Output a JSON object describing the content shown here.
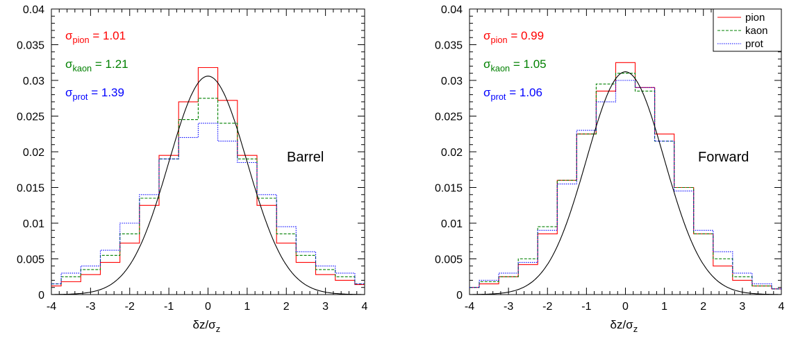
{
  "chart_data": [
    {
      "type": "line",
      "panel_label": "Barrel",
      "xlabel": "δz/σ",
      "xlabel_sub": "z",
      "xlim": [
        -4,
        4
      ],
      "ylim": [
        0,
        0.04
      ],
      "x_ticks": [
        "-4",
        "-3",
        "-2",
        "-1",
        "0",
        "1",
        "2",
        "3",
        "4"
      ],
      "y_ticks": [
        "0",
        "0.005",
        "0.01",
        "0.015",
        "0.02",
        "0.025",
        "0.03",
        "0.035",
        "0.04"
      ],
      "annotations": [
        {
          "sym": "σ",
          "sub": "pion",
          "text": " = 1.01",
          "color": "#ff0000"
        },
        {
          "sym": "σ",
          "sub": "kaon",
          "text": " = 1.21",
          "color": "#008000"
        },
        {
          "sym": "σ",
          "sub": "prot",
          "text": " = 1.39",
          "color": "#0000ff"
        }
      ],
      "series": [
        {
          "color": "#ff0000",
          "dash": "",
          "x": [
            -4,
            -3.5,
            -3,
            -2.5,
            -2,
            -1.5,
            -1,
            -0.5,
            0,
            0.5,
            1,
            1.5,
            2,
            2.5,
            3,
            3.5,
            4
          ],
          "y": [
            0.0012,
            0.0018,
            0.0028,
            0.0045,
            0.0072,
            0.0125,
            0.0195,
            0.027,
            0.0318,
            0.0272,
            0.0195,
            0.0125,
            0.0072,
            0.0045,
            0.0028,
            0.002,
            0.0014
          ]
        },
        {
          "color": "#008000",
          "dash": "4,2",
          "x": [
            -4,
            -3.5,
            -3,
            -2.5,
            -2,
            -1.5,
            -1,
            -0.5,
            0,
            0.5,
            1,
            1.5,
            2,
            2.5,
            3,
            3.5,
            4
          ],
          "y": [
            0.0015,
            0.0025,
            0.0035,
            0.0055,
            0.0085,
            0.0135,
            0.019,
            0.0245,
            0.0275,
            0.024,
            0.019,
            0.0135,
            0.0085,
            0.0055,
            0.0035,
            0.0025,
            0.0015
          ]
        },
        {
          "color": "#0000ff",
          "dash": "1.5,1.5",
          "x": [
            -4,
            -3.5,
            -3,
            -2.5,
            -2,
            -1.5,
            -1,
            -0.5,
            0,
            0.5,
            1,
            1.5,
            2,
            2.5,
            3,
            3.5,
            4
          ],
          "y": [
            0.0015,
            0.003,
            0.004,
            0.0062,
            0.01,
            0.014,
            0.019,
            0.022,
            0.024,
            0.0215,
            0.0185,
            0.014,
            0.0095,
            0.006,
            0.004,
            0.003,
            0.0015
          ]
        }
      ],
      "fit": {
        "amplitude": 0.0306,
        "mean": 0,
        "sigma": 1.0
      }
    },
    {
      "type": "line",
      "panel_label": "Forward",
      "xlabel": "δz/σ",
      "xlabel_sub": "z",
      "xlim": [
        -4,
        4
      ],
      "ylim": [
        0,
        0.04
      ],
      "x_ticks": [
        "-4",
        "-3",
        "-2",
        "-1",
        "0",
        "1",
        "2",
        "3",
        "4"
      ],
      "y_ticks": [
        "0",
        "0.005",
        "0.01",
        "0.015",
        "0.02",
        "0.025",
        "0.03",
        "0.035",
        "0.04"
      ],
      "annotations": [
        {
          "sym": "σ",
          "sub": "pion",
          "text": " = 0.99",
          "color": "#ff0000"
        },
        {
          "sym": "σ",
          "sub": "kaon",
          "text": " = 1.05",
          "color": "#008000"
        },
        {
          "sym": "σ",
          "sub": "prot",
          "text": " = 1.06",
          "color": "#0000ff"
        }
      ],
      "legend": {
        "position": "top-right",
        "entries": [
          {
            "label": "pion",
            "color": "#ff0000",
            "dash": ""
          },
          {
            "label": "kaon",
            "color": "#008000",
            "dash": "4,2"
          },
          {
            "label": "prot",
            "color": "#0000ff",
            "dash": "1.5,1.5"
          }
        ]
      },
      "series": [
        {
          "color": "#ff0000",
          "dash": "",
          "x": [
            -4,
            -3.5,
            -3,
            -2.5,
            -2,
            -1.5,
            -1,
            -0.5,
            0,
            0.5,
            1,
            1.5,
            2,
            2.5,
            3,
            3.5,
            4
          ],
          "y": [
            0.001,
            0.0015,
            0.0025,
            0.0042,
            0.0085,
            0.016,
            0.0225,
            0.0285,
            0.0325,
            0.029,
            0.0225,
            0.015,
            0.0085,
            0.004,
            0.002,
            0.0012,
            0.0008
          ]
        },
        {
          "color": "#008000",
          "dash": "4,2",
          "x": [
            -4,
            -3.5,
            -3,
            -2.5,
            -2,
            -1.5,
            -1,
            -0.5,
            0,
            0.5,
            1,
            1.5,
            2,
            2.5,
            3,
            3.5,
            4
          ],
          "y": [
            0.001,
            0.0018,
            0.0025,
            0.005,
            0.0095,
            0.016,
            0.0225,
            0.0295,
            0.031,
            0.0285,
            0.0215,
            0.015,
            0.0085,
            0.005,
            0.0025,
            0.0012,
            0.0008
          ]
        },
        {
          "color": "#0000ff",
          "dash": "1.5,1.5",
          "x": [
            -4,
            -3.5,
            -3,
            -2.5,
            -2,
            -1.5,
            -1,
            -0.5,
            0,
            0.5,
            1,
            1.5,
            2,
            2.5,
            3,
            3.5,
            4
          ],
          "y": [
            0.001,
            0.002,
            0.003,
            0.0045,
            0.009,
            0.0155,
            0.023,
            0.027,
            0.03,
            0.029,
            0.0215,
            0.0145,
            0.009,
            0.006,
            0.003,
            0.0015,
            0.0008
          ]
        }
      ],
      "fit": {
        "amplitude": 0.0312,
        "mean": 0,
        "sigma": 1.0
      }
    }
  ]
}
